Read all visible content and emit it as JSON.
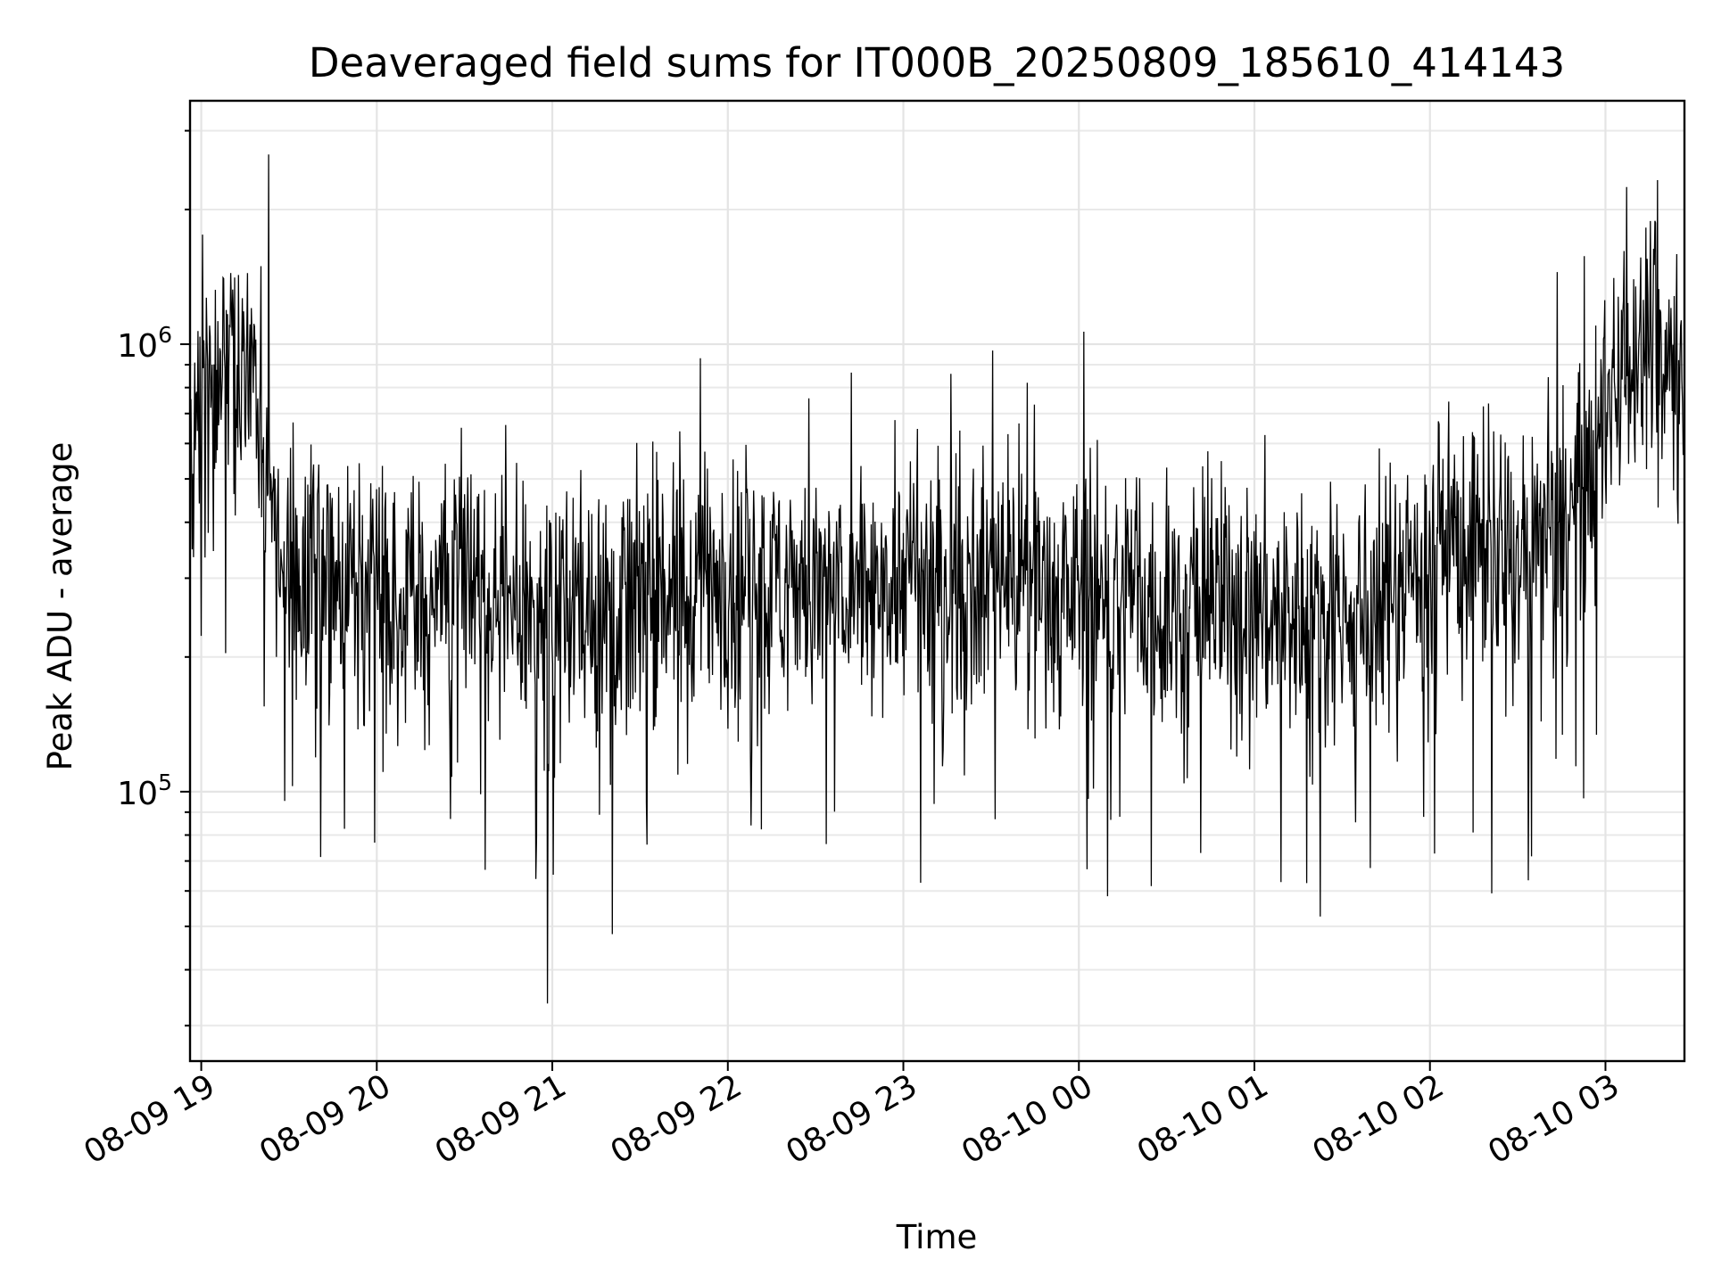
{
  "chart_data": {
    "type": "line",
    "title": "Deaveraged field sums for IT000B_20250809_185610_414143",
    "xlabel": "Time",
    "ylabel": "Peak ADU - average",
    "yscale": "log",
    "xlim": [
      "2025-08-09T18:56:10",
      "2025-08-10T03:27:00"
    ],
    "ylim": [
      25000,
      3500000
    ],
    "x_ticks": [
      {
        "value": "2025-08-09T19:00:00",
        "label": "08-09 19"
      },
      {
        "value": "2025-08-09T20:00:00",
        "label": "08-09 20"
      },
      {
        "value": "2025-08-09T21:00:00",
        "label": "08-09 21"
      },
      {
        "value": "2025-08-09T22:00:00",
        "label": "08-09 22"
      },
      {
        "value": "2025-08-09T23:00:00",
        "label": "08-09 23"
      },
      {
        "value": "2025-08-10T00:00:00",
        "label": "08-10 00"
      },
      {
        "value": "2025-08-10T01:00:00",
        "label": "08-10 01"
      },
      {
        "value": "2025-08-10T02:00:00",
        "label": "08-10 02"
      },
      {
        "value": "2025-08-10T03:00:00",
        "label": "08-10 03"
      }
    ],
    "y_ticks": [
      {
        "value": 100000,
        "base": "10",
        "exp": "5"
      },
      {
        "value": 1000000,
        "base": "10",
        "exp": "6"
      }
    ],
    "grid": true,
    "series": [
      {
        "color": "#000000",
        "points": [
          [
            "2025-08-09T18:56:10",
            520000
          ],
          [
            "2025-08-09T19:00:00",
            720000
          ],
          [
            "2025-08-09T19:05:00",
            780000
          ],
          [
            "2025-08-09T19:10:00",
            850000
          ],
          [
            "2025-08-09T19:15:00",
            950000
          ],
          [
            "2025-08-09T19:20:00",
            700000
          ],
          [
            "2025-08-09T19:25:00",
            420000
          ],
          [
            "2025-08-09T19:30:00",
            330000
          ],
          [
            "2025-08-09T19:35:00",
            300000
          ],
          [
            "2025-08-09T19:40:00",
            290000
          ],
          [
            "2025-08-09T19:50:00",
            310000
          ],
          [
            "2025-08-09T20:00:00",
            300000
          ],
          [
            "2025-08-09T20:15:00",
            280000
          ],
          [
            "2025-08-09T20:30:00",
            280000
          ],
          [
            "2025-08-09T20:45:00",
            270000
          ],
          [
            "2025-08-09T21:00:00",
            250000
          ],
          [
            "2025-08-09T21:15:00",
            260000
          ],
          [
            "2025-08-09T21:30:00",
            275000
          ],
          [
            "2025-08-09T21:45:00",
            290000
          ],
          [
            "2025-08-09T22:00:00",
            300000
          ],
          [
            "2025-08-09T22:15:00",
            295000
          ],
          [
            "2025-08-09T22:30:00",
            285000
          ],
          [
            "2025-08-09T22:45:00",
            280000
          ],
          [
            "2025-08-09T23:00:00",
            310000
          ],
          [
            "2025-08-09T23:15:00",
            300000
          ],
          [
            "2025-08-09T23:30:00",
            300000
          ],
          [
            "2025-08-09T23:45:00",
            310000
          ],
          [
            "2025-08-10T00:00:00",
            280000
          ],
          [
            "2025-08-10T00:15:00",
            270000
          ],
          [
            "2025-08-10T00:30:00",
            255000
          ],
          [
            "2025-08-10T00:45:00",
            260000
          ],
          [
            "2025-08-10T01:00:00",
            260000
          ],
          [
            "2025-08-10T01:15:00",
            250000
          ],
          [
            "2025-08-10T01:30:00",
            245000
          ],
          [
            "2025-08-10T01:45:00",
            280000
          ],
          [
            "2025-08-10T01:55:00",
            330000
          ],
          [
            "2025-08-10T02:00:00",
            370000
          ],
          [
            "2025-08-10T02:15:00",
            360000
          ],
          [
            "2025-08-10T02:30:00",
            320000
          ],
          [
            "2025-08-10T02:45:00",
            380000
          ],
          [
            "2025-08-10T02:55:00",
            520000
          ],
          [
            "2025-08-10T03:00:00",
            650000
          ],
          [
            "2025-08-10T03:05:00",
            1050000
          ],
          [
            "2025-08-10T03:10:00",
            1000000
          ],
          [
            "2025-08-10T03:15:00",
            950000
          ],
          [
            "2025-08-10T03:20:00",
            900000
          ],
          [
            "2025-08-10T03:27:00",
            900000
          ]
        ]
      }
    ]
  }
}
